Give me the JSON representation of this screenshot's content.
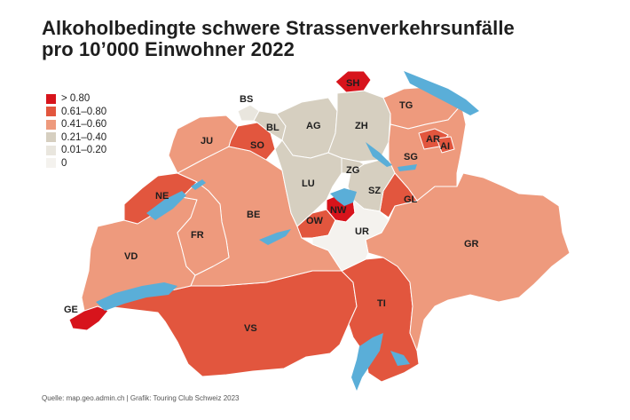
{
  "title": {
    "line1": "Alkoholbedingte schwere Strassenverkehrsunfälle",
    "line2": "pro 10’000 Einwohner 2022"
  },
  "colors": {
    "c5": "#d7141c",
    "c4": "#e2563e",
    "c3": "#ee9a7d",
    "c2": "#d6cfc0",
    "c1": "#e9e6de",
    "c0": "#f4f2ee",
    "water": "#5aaed8",
    "border": "#ffffff"
  },
  "legend": [
    {
      "label": "> 0.80",
      "color": "#d7141c"
    },
    {
      "label": "0.61–0.80",
      "color": "#e2563e"
    },
    {
      "label": "0.41–0.60",
      "color": "#ee9a7d"
    },
    {
      "label": "0.21–0.40",
      "color": "#d6cfc0"
    },
    {
      "label": "0.01–0.20",
      "color": "#e9e6de"
    },
    {
      "label": "0",
      "color": "#f4f2ee"
    }
  ],
  "cantons": [
    {
      "code": "SH",
      "class": "> 0.80"
    },
    {
      "code": "BS",
      "class": "0.01–0.20"
    },
    {
      "code": "BL",
      "class": "0.21–0.40"
    },
    {
      "code": "AG",
      "class": "0.21–0.40"
    },
    {
      "code": "ZH",
      "class": "0.21–0.40"
    },
    {
      "code": "TG",
      "class": "0.41–0.60"
    },
    {
      "code": "JU",
      "class": "0.41–0.60"
    },
    {
      "code": "SO",
      "class": "0.61–0.80"
    },
    {
      "code": "AR",
      "class": "0.61–0.80"
    },
    {
      "code": "AI",
      "class": "0.61–0.80"
    },
    {
      "code": "SG",
      "class": "0.41–0.60"
    },
    {
      "code": "ZG",
      "class": "0.21–0.40"
    },
    {
      "code": "LU",
      "class": "0.21–0.40"
    },
    {
      "code": "NE",
      "class": "0.61–0.80"
    },
    {
      "code": "SZ",
      "class": "0.21–0.40"
    },
    {
      "code": "GL",
      "class": "0.61–0.80"
    },
    {
      "code": "NW",
      "class": "> 0.80"
    },
    {
      "code": "OW",
      "class": "0.61–0.80"
    },
    {
      "code": "BE",
      "class": "0.41–0.60"
    },
    {
      "code": "UR",
      "class": "0"
    },
    {
      "code": "FR",
      "class": "0.41–0.60"
    },
    {
      "code": "GR",
      "class": "0.41–0.60"
    },
    {
      "code": "VD",
      "class": "0.41–0.60"
    },
    {
      "code": "TI",
      "class": "0.61–0.80"
    },
    {
      "code": "GE",
      "class": "> 0.80"
    },
    {
      "code": "VS",
      "class": "0.61–0.80"
    }
  ],
  "footer": "Quelle: map.geo.admin.ch | Grafik: Touring Club Schweiz 2023"
}
